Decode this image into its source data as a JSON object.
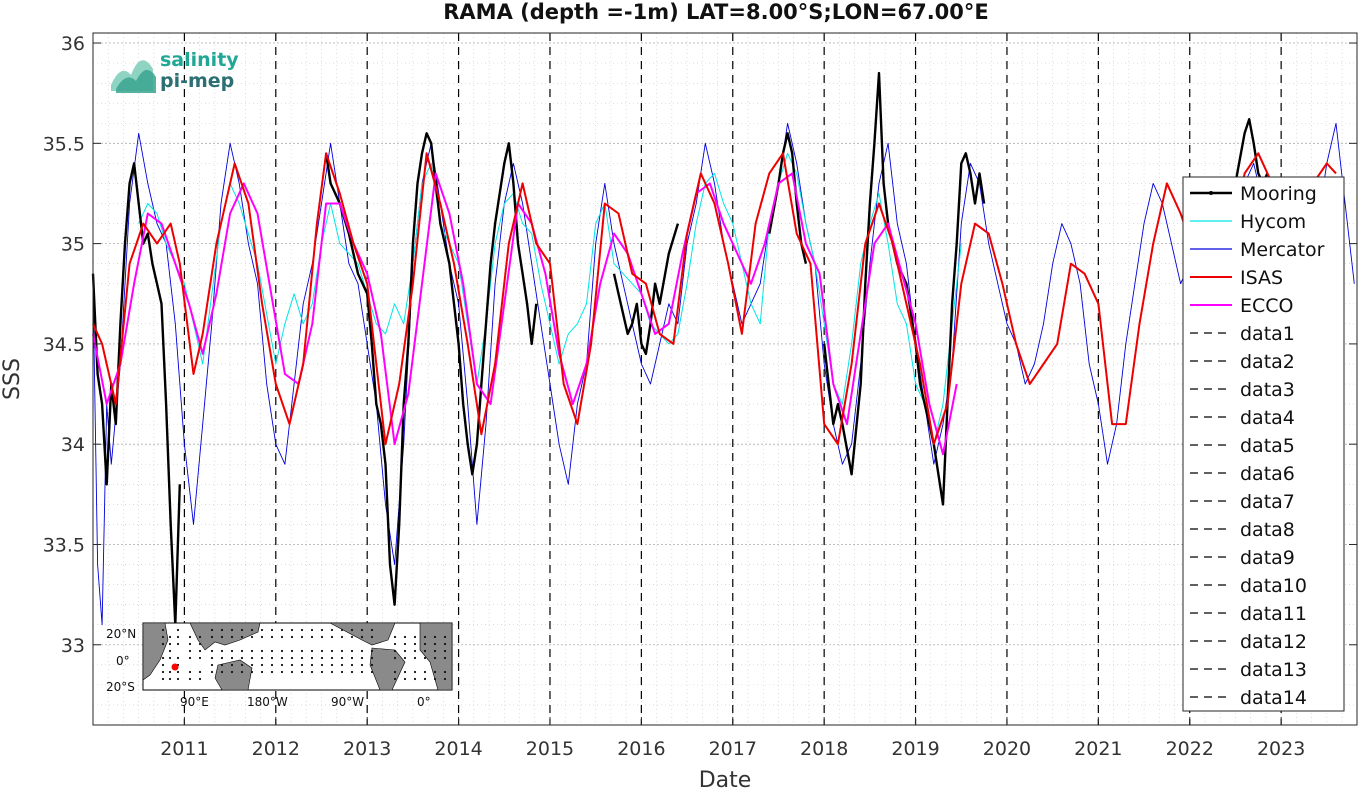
{
  "chart_data": {
    "type": "line",
    "title": "RAMA (depth =-1m) LAT=8.00°S;LON=67.00°E",
    "xlabel": "Date",
    "ylabel": "SSS",
    "xlim": [
      "2010-01-01",
      "2023-10-31"
    ],
    "ylim": [
      32.6,
      36.05
    ],
    "x_ticks": [
      "2011",
      "2012",
      "2013",
      "2014",
      "2015",
      "2016",
      "2017",
      "2018",
      "2019",
      "2020",
      "2021",
      "2022",
      "2023"
    ],
    "y_ticks": [
      "33",
      "33.5",
      "34",
      "34.5",
      "35",
      "35.5",
      "36"
    ],
    "grid": true,
    "legend_position": "right",
    "legend": [
      "Mooring",
      "Hycom",
      "Mercator",
      "ISAS",
      "ECCO",
      "data1",
      "data2",
      "data3",
      "data4",
      "data5",
      "data6",
      "data7",
      "data8",
      "data9",
      "data10",
      "data11",
      "data12",
      "data13",
      "data14"
    ],
    "year_boundaries_dashed": [
      "2011-01-01",
      "2012-01-01",
      "2013-01-01",
      "2014-01-01",
      "2015-01-01",
      "2016-01-01",
      "2017-01-01",
      "2018-01-01",
      "2019-01-01",
      "2020-01-01",
      "2021-01-01",
      "2022-01-01",
      "2023-01-01"
    ],
    "colors": {
      "Mooring": "#000000",
      "Hycom": "#00e5e5",
      "Mercator": "#0000dd",
      "ISAS": "#ee0000",
      "ECCO": "#ff00ff",
      "dashed": "#000000"
    },
    "series": [
      {
        "name": "Mooring",
        "x": [
          2010.0,
          2010.05,
          2010.1,
          2010.15,
          2010.2,
          2010.25,
          2010.3,
          2010.35,
          2010.4,
          2010.45,
          2010.5,
          2010.55,
          2010.6,
          2010.65,
          2010.7,
          2010.75,
          2010.8,
          2010.85,
          2010.9,
          2010.95,
          null,
          2012.55,
          2012.6,
          2012.7,
          2012.8,
          2012.9,
          2013.0,
          2013.05,
          2013.1,
          2013.15,
          2013.2,
          2013.25,
          2013.3,
          2013.35,
          2013.4,
          2013.45,
          2013.5,
          2013.55,
          2013.6,
          2013.65,
          2013.7,
          2013.75,
          2013.8,
          2013.85,
          2013.9,
          2013.95,
          2014.0,
          2014.05,
          2014.1,
          2014.15,
          2014.2,
          2014.25,
          2014.3,
          2014.35,
          2014.4,
          2014.45,
          2014.5,
          2014.55,
          2014.6,
          2014.65,
          2014.7,
          2014.75,
          2014.8,
          2014.85,
          null,
          2015.7,
          2015.75,
          2015.8,
          2015.85,
          2015.9,
          2015.95,
          2016.0,
          2016.05,
          2016.1,
          2016.15,
          2016.2,
          2016.3,
          2016.4,
          null,
          2017.4,
          2017.5,
          2017.55,
          2017.6,
          2017.65,
          2017.7,
          2017.75,
          2017.8,
          null,
          2018.0,
          2018.05,
          2018.1,
          2018.15,
          2018.2,
          2018.3,
          2018.4,
          2018.45,
          2018.5,
          2018.55,
          2018.6,
          2018.65,
          2018.7,
          2018.8,
          2018.9,
          2019.0,
          2019.05,
          2019.1,
          2019.15,
          2019.2,
          2019.25,
          2019.3,
          2019.35,
          2019.4,
          2019.45,
          2019.5,
          2019.55,
          2019.6,
          2019.65,
          2019.7,
          2019.75,
          null,
          2022.5,
          2022.6,
          2022.65,
          2022.7,
          2022.75,
          2022.8,
          2022.85
        ],
        "y": [
          34.85,
          34.35,
          34.2,
          33.8,
          34.3,
          34.1,
          34.6,
          35.0,
          35.3,
          35.4,
          35.2,
          35.0,
          35.05,
          34.9,
          34.8,
          34.7,
          34.2,
          33.6,
          33.1,
          33.8,
          null,
          35.45,
          35.3,
          35.2,
          35.05,
          34.85,
          34.75,
          34.5,
          34.2,
          34.1,
          33.9,
          33.4,
          33.2,
          33.6,
          34.2,
          34.5,
          35.0,
          35.3,
          35.45,
          35.55,
          35.5,
          35.3,
          35.1,
          35.0,
          34.9,
          34.7,
          34.5,
          34.2,
          34.0,
          33.85,
          34.0,
          34.3,
          34.6,
          34.9,
          35.1,
          35.25,
          35.4,
          35.5,
          35.3,
          35.0,
          34.85,
          34.7,
          34.5,
          34.7,
          null,
          34.85,
          34.75,
          34.65,
          34.55,
          34.6,
          34.7,
          34.5,
          34.45,
          34.6,
          34.8,
          34.7,
          34.95,
          35.1,
          null,
          35.05,
          35.3,
          35.45,
          35.55,
          35.45,
          35.2,
          35.0,
          34.9,
          null,
          34.5,
          34.3,
          34.1,
          34.2,
          34.1,
          33.85,
          34.3,
          34.8,
          35.2,
          35.5,
          35.85,
          35.3,
          35.1,
          34.9,
          34.8,
          34.5,
          34.3,
          34.2,
          34.1,
          34.0,
          33.85,
          33.7,
          34.2,
          34.7,
          35.0,
          35.4,
          35.45,
          35.35,
          35.2,
          35.35,
          35.2,
          null,
          35.3,
          35.55,
          35.62,
          35.5,
          35.35,
          35.3,
          35.35
        ]
      },
      {
        "name": "Hycom",
        "x": [
          2010.5,
          2010.6,
          2010.7,
          2010.8,
          2010.9,
          2011.0,
          2011.2,
          2011.4,
          2011.5,
          2011.6,
          2011.8,
          2012.0,
          2012.1,
          2012.2,
          2012.3,
          2012.4,
          2012.5,
          2012.6,
          2012.7,
          2012.8,
          2012.9,
          2013.0,
          2013.1,
          2013.2,
          2013.3,
          2013.4,
          2013.5,
          2013.6,
          2013.7,
          2013.8,
          2013.9,
          2014.0,
          2014.1,
          2014.2,
          2014.3,
          2014.4,
          2014.5,
          2014.6,
          2014.7,
          2014.8,
          2014.9,
          2015.0,
          2015.1,
          2015.2,
          2015.3,
          2015.4,
          2015.5,
          2015.6,
          2015.7,
          2015.8,
          2015.9,
          2016.0,
          2016.1,
          2016.2,
          2016.3,
          2016.4,
          2016.5,
          2016.6,
          2016.7,
          2016.8,
          2016.9,
          2017.0,
          2017.1,
          2017.2,
          2017.3,
          2017.4,
          2017.5,
          2017.6,
          2017.7,
          2017.8,
          2017.9,
          2018.0,
          2018.1,
          2018.2,
          2018.3,
          2018.4,
          2018.5,
          2018.6,
          2018.7,
          2018.8,
          2018.9,
          2019.0,
          2019.1,
          2019.2,
          2019.3,
          2019.4,
          2019.5
        ],
        "y": [
          35.1,
          35.2,
          35.15,
          35.0,
          34.9,
          34.8,
          34.4,
          35.1,
          35.3,
          35.2,
          34.9,
          34.4,
          34.6,
          34.75,
          34.6,
          34.7,
          35.0,
          35.2,
          35.0,
          34.95,
          34.9,
          34.75,
          34.6,
          34.55,
          34.7,
          34.6,
          34.9,
          35.3,
          35.4,
          35.1,
          35.0,
          34.9,
          34.6,
          34.3,
          34.6,
          35.0,
          35.2,
          35.25,
          35.1,
          35.05,
          34.8,
          34.6,
          34.4,
          34.55,
          34.6,
          34.7,
          35.1,
          35.2,
          34.9,
          34.85,
          34.8,
          34.75,
          34.6,
          34.55,
          34.5,
          34.55,
          34.8,
          35.1,
          35.3,
          35.35,
          35.2,
          35.1,
          34.9,
          34.7,
          34.6,
          35.1,
          35.3,
          35.45,
          35.35,
          35.1,
          34.9,
          34.6,
          34.3,
          34.2,
          34.5,
          34.9,
          35.1,
          35.25,
          35.0,
          34.7,
          34.6,
          34.3,
          34.2,
          34.0,
          34.2,
          34.6,
          35.0
        ]
      },
      {
        "name": "Mercator",
        "x": [
          2010.0,
          2010.05,
          2010.1,
          2010.15,
          2010.2,
          2010.3,
          2010.4,
          2010.5,
          2010.6,
          2010.7,
          2010.8,
          2010.9,
          2011.0,
          2011.1,
          2011.2,
          2011.3,
          2011.4,
          2011.5,
          2011.6,
          2011.7,
          2011.8,
          2011.9,
          2012.0,
          2012.1,
          2012.2,
          2012.3,
          2012.4,
          2012.5,
          2012.6,
          2012.7,
          2012.8,
          2012.9,
          2013.0,
          2013.1,
          2013.2,
          2013.3,
          2013.4,
          2013.5,
          2013.6,
          2013.7,
          2013.8,
          2013.9,
          2014.0,
          2014.1,
          2014.2,
          2014.3,
          2014.4,
          2014.5,
          2014.6,
          2014.7,
          2014.8,
          2014.9,
          2015.0,
          2015.1,
          2015.2,
          2015.3,
          2015.4,
          2015.5,
          2015.6,
          2015.7,
          2015.8,
          2015.9,
          2016.0,
          2016.1,
          2016.2,
          2016.3,
          2016.4,
          2016.5,
          2016.6,
          2016.7,
          2016.8,
          2016.9,
          2017.0,
          2017.1,
          2017.2,
          2017.3,
          2017.4,
          2017.5,
          2017.6,
          2017.7,
          2017.8,
          2017.9,
          2018.0,
          2018.1,
          2018.2,
          2018.3,
          2018.4,
          2018.5,
          2018.6,
          2018.7,
          2018.8,
          2018.9,
          2019.0,
          2019.1,
          2019.2,
          2019.3,
          2019.4,
          2019.5,
          2019.6,
          2019.7,
          2019.8,
          2019.9,
          2020.0,
          2020.1,
          2020.2,
          2020.3,
          2020.4,
          2020.5,
          2020.6,
          2020.7,
          2020.8,
          2020.9,
          2021.0,
          2021.1,
          2021.2,
          2021.3,
          2021.4,
          2021.5,
          2021.6,
          2021.7,
          2021.8,
          2021.9,
          2022.0,
          2022.1,
          2022.2,
          2022.3,
          2022.4,
          2022.5,
          2022.6,
          2022.7,
          2022.8,
          2022.9,
          2023.0,
          2023.1,
          2023.2,
          2023.3,
          2023.4,
          2023.5,
          2023.6,
          2023.7,
          2023.8
        ],
        "y": [
          34.8,
          33.4,
          33.1,
          34.2,
          33.9,
          34.4,
          35.2,
          35.55,
          35.3,
          35.1,
          35.0,
          34.6,
          34.0,
          33.6,
          34.1,
          34.6,
          35.2,
          35.5,
          35.3,
          35.0,
          34.8,
          34.3,
          34.0,
          33.9,
          34.3,
          34.7,
          34.9,
          35.2,
          35.5,
          35.2,
          34.9,
          34.8,
          34.5,
          34.2,
          33.7,
          33.4,
          34.0,
          34.9,
          35.3,
          35.5,
          35.2,
          34.9,
          34.7,
          34.2,
          33.6,
          34.1,
          34.8,
          35.2,
          35.4,
          35.2,
          34.9,
          34.6,
          34.3,
          34.0,
          33.8,
          34.2,
          34.4,
          35.0,
          35.3,
          35.0,
          34.8,
          34.6,
          34.4,
          34.3,
          34.5,
          34.7,
          34.6,
          35.0,
          35.2,
          35.5,
          35.3,
          35.0,
          34.8,
          34.6,
          34.7,
          34.8,
          35.1,
          35.3,
          35.6,
          35.4,
          35.1,
          34.9,
          34.4,
          34.1,
          33.9,
          34.0,
          34.4,
          34.9,
          35.3,
          35.5,
          35.1,
          34.9,
          34.5,
          34.2,
          33.9,
          34.1,
          34.4,
          35.1,
          35.4,
          35.3,
          35.0,
          34.8,
          34.6,
          34.5,
          34.3,
          34.4,
          34.6,
          34.9,
          35.1,
          35.0,
          34.8,
          34.4,
          34.2,
          33.9,
          34.1,
          34.5,
          34.8,
          35.1,
          35.3,
          35.2,
          35.0,
          34.8,
          34.9,
          35.0,
          34.8,
          34.6,
          34.7,
          35.0,
          35.3,
          35.4,
          35.2,
          35.1,
          35.0,
          34.9,
          34.8,
          34.9,
          35.1,
          35.4,
          35.6,
          35.2,
          34.8
        ]
      },
      {
        "name": "ISAS",
        "x": [
          2010.0,
          2010.1,
          2010.25,
          2010.4,
          2010.55,
          2010.7,
          2010.85,
          2010.95,
          2011.1,
          2011.2,
          2011.35,
          2011.55,
          2011.7,
          2011.85,
          2012.0,
          2012.15,
          2012.3,
          2012.45,
          2012.55,
          2012.7,
          2012.85,
          2013.0,
          2013.1,
          2013.2,
          2013.35,
          2013.5,
          2013.65,
          2013.8,
          2013.95,
          2014.1,
          2014.25,
          2014.4,
          2014.55,
          2014.7,
          2014.85,
          2015.0,
          2015.15,
          2015.3,
          2015.45,
          2015.6,
          2015.75,
          2015.9,
          2016.05,
          2016.2,
          2016.35,
          2016.5,
          2016.65,
          2016.8,
          2016.95,
          2017.1,
          2017.25,
          2017.4,
          2017.55,
          2017.7,
          2017.85,
          2018.0,
          2018.15,
          2018.3,
          2018.45,
          2018.6,
          2018.75,
          2018.9,
          2019.05,
          2019.2,
          2019.35,
          2019.5,
          2019.65,
          2019.8,
          2019.95,
          2020.1,
          2020.25,
          2020.4,
          2020.55,
          2020.7,
          2020.85,
          2021.0,
          2021.15,
          2021.3,
          2021.45,
          2021.6,
          2021.75,
          2021.9,
          2022.05,
          2022.2,
          2022.35,
          2022.5,
          2022.6,
          2022.75,
          2022.9,
          2023.05,
          2023.2,
          2023.35,
          2023.5,
          2023.6
        ],
        "y": [
          34.6,
          34.5,
          34.2,
          34.9,
          35.1,
          35.0,
          35.1,
          34.9,
          34.35,
          34.55,
          35.0,
          35.4,
          35.2,
          34.7,
          34.3,
          34.1,
          34.4,
          35.1,
          35.45,
          35.25,
          35.0,
          34.8,
          34.4,
          34.0,
          34.3,
          34.8,
          35.45,
          35.2,
          34.9,
          34.5,
          34.05,
          34.4,
          35.0,
          35.3,
          35.0,
          34.9,
          34.3,
          34.1,
          34.5,
          35.2,
          35.15,
          34.85,
          34.8,
          34.55,
          34.5,
          35.05,
          35.35,
          35.2,
          34.9,
          34.55,
          35.1,
          35.35,
          35.45,
          35.05,
          34.9,
          34.1,
          34.0,
          34.4,
          35.0,
          35.2,
          35.0,
          34.7,
          34.4,
          34.0,
          34.2,
          34.8,
          35.1,
          35.05,
          34.8,
          34.5,
          34.3,
          34.4,
          34.5,
          34.9,
          34.85,
          34.7,
          34.1,
          34.1,
          34.6,
          35.0,
          35.3,
          35.15,
          34.95,
          34.9,
          34.85,
          35.1,
          35.35,
          35.45,
          35.3,
          35.2,
          35.1,
          35.3,
          35.4,
          35.35
        ]
      },
      {
        "name": "ECCO",
        "x": [
          2010.0,
          2010.15,
          2010.3,
          2010.45,
          2010.6,
          2010.75,
          2010.9,
          2011.05,
          2011.2,
          2011.35,
          2011.5,
          2011.65,
          2011.8,
          2011.95,
          2012.1,
          2012.25,
          2012.4,
          2012.55,
          2012.7,
          2012.85,
          2013.0,
          2013.15,
          2013.3,
          2013.45,
          2013.6,
          2013.75,
          2013.9,
          2014.05,
          2014.2,
          2014.35,
          2014.5,
          2014.65,
          2014.8,
          2014.95,
          2015.1,
          2015.25,
          2015.4,
          2015.55,
          2015.7,
          2015.85,
          2016.0,
          2016.15,
          2016.3,
          2016.45,
          2016.6,
          2016.75,
          2016.9,
          2017.05,
          2017.2,
          2017.35,
          2017.5,
          2017.65,
          2017.8,
          2017.95,
          2018.1,
          2018.25,
          2018.4,
          2018.55,
          2018.7,
          2018.85,
          2019.0,
          2019.15,
          2019.3,
          2019.45
        ],
        "y": [
          34.55,
          34.2,
          34.4,
          34.8,
          35.15,
          35.1,
          34.9,
          34.7,
          34.45,
          34.75,
          35.15,
          35.3,
          35.15,
          34.75,
          34.35,
          34.3,
          34.6,
          35.2,
          35.2,
          35.0,
          34.85,
          34.55,
          34.0,
          34.25,
          34.8,
          35.35,
          35.15,
          34.8,
          34.3,
          34.2,
          34.7,
          35.2,
          35.1,
          34.85,
          34.45,
          34.2,
          34.4,
          34.8,
          35.05,
          34.95,
          34.75,
          34.55,
          34.6,
          34.95,
          35.25,
          35.3,
          35.1,
          34.95,
          34.8,
          35.0,
          35.3,
          35.35,
          35.0,
          34.85,
          34.3,
          34.1,
          34.55,
          35.0,
          35.1,
          34.85,
          34.6,
          34.2,
          33.95,
          34.3
        ]
      }
    ]
  },
  "logo": {
    "line1": "salinity",
    "line2": "pi-mep"
  },
  "map_inset": {
    "y_labels": [
      "20°N",
      "0°",
      "20°S"
    ],
    "x_labels": [
      "90°E",
      "180°W",
      "90°W",
      "0°"
    ],
    "highlight_color": "#ff0000"
  }
}
